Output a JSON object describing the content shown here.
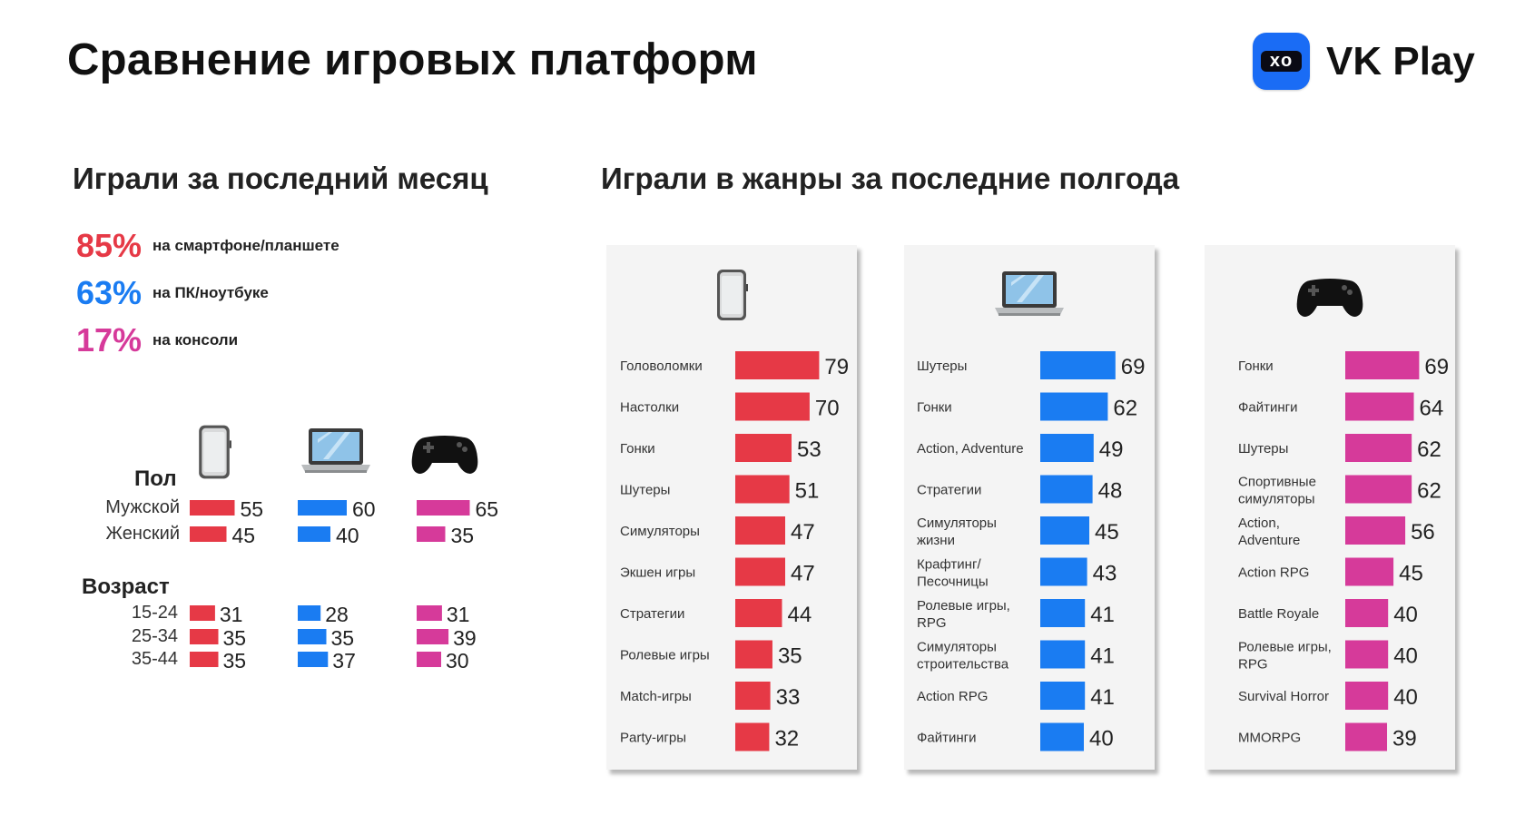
{
  "header": {
    "title": "Сравнение игровых платформ",
    "brand": "VK Play",
    "brand_logo_text": "xo"
  },
  "left": {
    "title": "Играли за последний месяц",
    "stats": [
      {
        "value": "85%",
        "label": "на смартфоне/планшете",
        "color": "#e63946"
      },
      {
        "value": "63%",
        "label": "на ПК/ноутбуке",
        "color": "#1a7cf2"
      },
      {
        "value": "17%",
        "label": "на консоли",
        "color": "#d63a9a"
      }
    ]
  },
  "right": {
    "title": "Играли в жанры за последние полгода"
  },
  "chart_data": [
    {
      "type": "bar",
      "name": "demographics",
      "platforms": [
        {
          "icon": "smartphone-icon",
          "color": "#e63946"
        },
        {
          "icon": "laptop-icon",
          "color": "#1a7cf2"
        },
        {
          "icon": "gamepad-icon",
          "color": "#d63a9a"
        }
      ],
      "groups": [
        {
          "title": "Пол",
          "categories": [
            "Мужской",
            "Женский"
          ],
          "series": [
            {
              "platform": "smartphone",
              "values": [
                55,
                45
              ]
            },
            {
              "platform": "pc",
              "values": [
                60,
                40
              ]
            },
            {
              "platform": "console",
              "values": [
                65,
                35
              ]
            }
          ]
        },
        {
          "title": "Возраст",
          "categories": [
            "15-24",
            "25-34",
            "35-44"
          ],
          "series": [
            {
              "platform": "smartphone",
              "values": [
                31,
                35,
                35
              ]
            },
            {
              "platform": "pc",
              "values": [
                28,
                35,
                37
              ]
            },
            {
              "platform": "console",
              "values": [
                31,
                39,
                30
              ]
            }
          ]
        }
      ]
    },
    {
      "type": "bar",
      "orientation": "horizontal",
      "platform": "smartphone",
      "icon": "smartphone-icon",
      "color": "#e63946",
      "categories": [
        "Головоломки",
        "Настолки",
        "Гонки",
        "Шутеры",
        "Симуляторы",
        "Экшен игры",
        "Стратегии",
        "Ролевые игры",
        "Match-игры",
        "Party-игры"
      ],
      "values": [
        79,
        70,
        53,
        51,
        47,
        47,
        44,
        35,
        33,
        32
      ]
    },
    {
      "type": "bar",
      "orientation": "horizontal",
      "platform": "pc",
      "icon": "laptop-icon",
      "color": "#1a7cf2",
      "categories": [
        "Шутеры",
        "Гонки",
        "Action, Adventure",
        "Стратегии",
        "Симуляторы\nжизни",
        "Крафтинг/\nПесочницы",
        "Ролевые игры,\nRPG",
        "Симуляторы\nстроительства",
        "Action RPG",
        "Файтинги"
      ],
      "values": [
        69,
        62,
        49,
        48,
        45,
        43,
        41,
        41,
        41,
        40
      ]
    },
    {
      "type": "bar",
      "orientation": "horizontal",
      "platform": "console",
      "icon": "gamepad-icon",
      "color": "#d63a9a",
      "categories": [
        "Гонки",
        "Файтинги",
        "Шутеры",
        "Спортивные\nсимуляторы",
        "Action,\nAdventure",
        "Action RPG",
        "Battle Royale",
        "Ролевые игры,\nRPG",
        "Survival Horror",
        "MMORPG"
      ],
      "values": [
        69,
        64,
        62,
        62,
        56,
        45,
        40,
        40,
        40,
        39
      ]
    }
  ]
}
